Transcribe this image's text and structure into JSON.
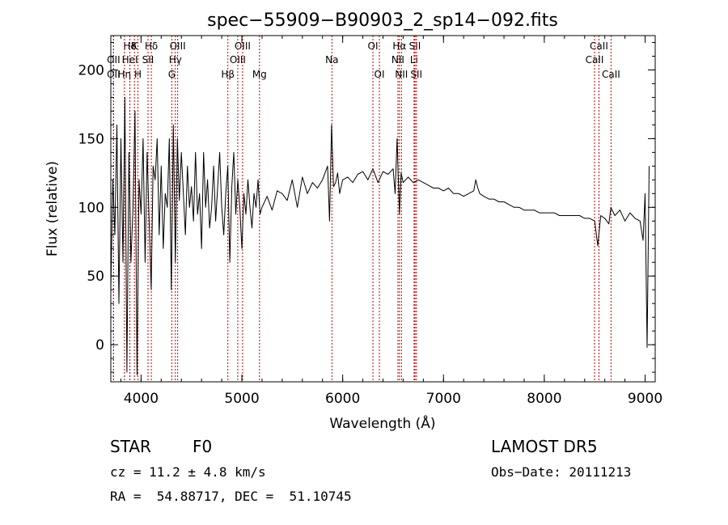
{
  "chart_data": {
    "type": "line",
    "title": "spec−55909−B90903_2_sp14−092.fits",
    "xlabel": "Wavelength (Å)",
    "ylabel": "Flux (relative)",
    "xlim": [
      3700,
      9100
    ],
    "ylim": [
      -27,
      225
    ],
    "xticks": [
      4000,
      5000,
      6000,
      7000,
      8000,
      9000
    ],
    "xtick_labels": [
      "4000",
      "5000",
      "6000",
      "7000",
      "8000",
      "9000"
    ],
    "yticks": [
      0,
      50,
      100,
      150,
      200
    ],
    "ytick_labels": [
      "0",
      "50",
      "100",
      "150",
      "200"
    ],
    "grid": false,
    "line_color": "#000000",
    "marker_color": "#c00000",
    "spectrum": {
      "name": "flux",
      "x": [
        3700,
        3720,
        3740,
        3760,
        3780,
        3800,
        3820,
        3840,
        3860,
        3880,
        3900,
        3920,
        3940,
        3960,
        3980,
        4000,
        4020,
        4040,
        4060,
        4080,
        4100,
        4120,
        4140,
        4160,
        4180,
        4200,
        4220,
        4240,
        4260,
        4280,
        4300,
        4320,
        4340,
        4360,
        4380,
        4400,
        4420,
        4440,
        4460,
        4480,
        4500,
        4520,
        4540,
        4560,
        4580,
        4600,
        4620,
        4640,
        4660,
        4680,
        4700,
        4720,
        4740,
        4760,
        4780,
        4800,
        4820,
        4840,
        4860,
        4880,
        4900,
        4920,
        4940,
        4960,
        4980,
        5000,
        5020,
        5040,
        5060,
        5080,
        5100,
        5120,
        5140,
        5160,
        5180,
        5200,
        5250,
        5300,
        5350,
        5400,
        5450,
        5500,
        5550,
        5600,
        5650,
        5700,
        5750,
        5800,
        5850,
        5870,
        5890,
        5910,
        5930,
        5950,
        5970,
        6000,
        6050,
        6100,
        6150,
        6200,
        6250,
        6300,
        6350,
        6400,
        6450,
        6500,
        6520,
        6540,
        6563,
        6580,
        6600,
        6650,
        6700,
        6750,
        6800,
        6850,
        6900,
        6950,
        7000,
        7050,
        7100,
        7150,
        7200,
        7250,
        7300,
        7320,
        7340,
        7360,
        7400,
        7450,
        7500,
        7550,
        7600,
        7650,
        7700,
        7750,
        7800,
        7850,
        7900,
        7950,
        8000,
        8050,
        8100,
        8150,
        8200,
        8250,
        8300,
        8350,
        8400,
        8450,
        8500,
        8530,
        8560,
        8600,
        8640,
        8660,
        8700,
        8750,
        8800,
        8850,
        8900,
        8950,
        8980,
        9000,
        9020,
        9040
      ],
      "values": [
        40,
        120,
        80,
        160,
        30,
        150,
        60,
        180,
        -20,
        140,
        60,
        100,
        170,
        -22,
        120,
        95,
        150,
        60,
        140,
        90,
        40,
        130,
        120,
        150,
        80,
        130,
        70,
        110,
        100,
        150,
        40,
        160,
        60,
        150,
        105,
        140,
        110,
        80,
        130,
        100,
        115,
        90,
        140,
        95,
        110,
        70,
        140,
        100,
        120,
        85,
        100,
        130,
        90,
        115,
        140,
        100,
        80,
        110,
        130,
        60,
        115,
        140,
        95,
        120,
        100,
        70,
        110,
        95,
        120,
        100,
        85,
        110,
        100,
        120,
        95,
        100,
        108,
        98,
        112,
        110,
        105,
        120,
        100,
        122,
        110,
        118,
        114,
        120,
        130,
        90,
        160,
        115,
        118,
        125,
        110,
        120,
        122,
        118,
        124,
        126,
        120,
        128,
        118,
        126,
        124,
        128,
        110,
        150,
        95,
        125,
        118,
        122,
        118,
        120,
        118,
        116,
        114,
        114,
        112,
        114,
        110,
        110,
        108,
        110,
        112,
        120,
        114,
        110,
        108,
        106,
        106,
        104,
        104,
        102,
        100,
        100,
        98,
        98,
        98,
        96,
        96,
        96,
        96,
        94,
        94,
        94,
        94,
        94,
        92,
        92,
        90,
        72,
        94,
        92,
        88,
        100,
        94,
        98,
        90,
        96,
        92,
        90,
        76,
        110,
        -2,
        130
      ]
    },
    "lines": [
      {
        "label": "Hδ",
        "x": 3889,
        "row": 0
      },
      {
        "label": "K",
        "x": 3934,
        "row": 0
      },
      {
        "label": "Hδ",
        "x": 4102,
        "row": 0
      },
      {
        "label": "OIII",
        "x": 4363,
        "row": 0
      },
      {
        "label": "OIII",
        "x": 5007,
        "row": 0
      },
      {
        "label": "OI",
        "x": 6300,
        "row": 0
      },
      {
        "label": "Hα",
        "x": 6563,
        "row": 0
      },
      {
        "label": "SII",
        "x": 6717,
        "row": 0
      },
      {
        "label": "CaII",
        "x": 8542,
        "row": 0
      },
      {
        "label": "OII",
        "x": 3727,
        "row": 1
      },
      {
        "label": "HeI",
        "x": 3889,
        "row": 1
      },
      {
        "label": "SII",
        "x": 4069,
        "row": 1
      },
      {
        "label": "Hγ",
        "x": 4340,
        "row": 1
      },
      {
        "label": "OIII",
        "x": 4959,
        "row": 1
      },
      {
        "label": "Na",
        "x": 5893,
        "row": 1
      },
      {
        "label": "NII",
        "x": 6548,
        "row": 1
      },
      {
        "label": "Li",
        "x": 6708,
        "row": 1
      },
      {
        "label": "CaII",
        "x": 8498,
        "row": 1
      },
      {
        "label": "OII",
        "x": 3727,
        "row": 2
      },
      {
        "label": "Hη",
        "x": 3835,
        "row": 2
      },
      {
        "label": "H",
        "x": 3969,
        "row": 2
      },
      {
        "label": "G",
        "x": 4305,
        "row": 2
      },
      {
        "label": "Hβ",
        "x": 4861,
        "row": 2
      },
      {
        "label": "Mg",
        "x": 5175,
        "row": 2
      },
      {
        "label": "OI",
        "x": 6364,
        "row": 2
      },
      {
        "label": "NII",
        "x": 6583,
        "row": 2
      },
      {
        "label": "SII",
        "x": 6731,
        "row": 2
      },
      {
        "label": "CaII",
        "x": 8662,
        "row": 2
      }
    ]
  },
  "info": {
    "object_class": "STAR",
    "subclass": "F0",
    "survey": "LAMOST DR5",
    "redshift": "cz = 11.2 ± 4.8 km/s",
    "obs_date": "Obs−Date: 20111213",
    "coords": "RA =  54.88717, DEC =  51.10745"
  }
}
